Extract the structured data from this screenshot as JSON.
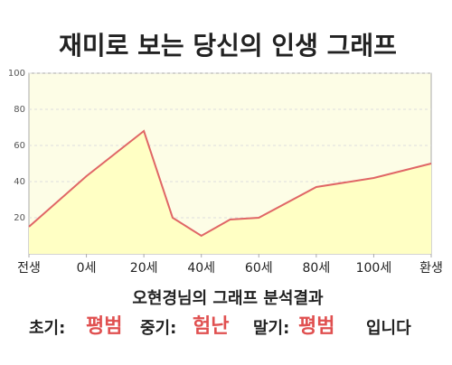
{
  "chart_data": {
    "type": "area",
    "title": "재미로 보는 당신의 인생 그래프",
    "x": [
      -20,
      0,
      20,
      30,
      40,
      50,
      60,
      80,
      100,
      120
    ],
    "values": [
      15,
      43,
      68,
      20,
      10,
      19,
      20,
      37,
      42,
      50
    ],
    "color": "#e06666",
    "fill": "#ffffc4",
    "xlim": [
      -20,
      120
    ],
    "xticks": [
      {
        "value": -20,
        "label": "전생"
      },
      {
        "value": 0,
        "label": "0세"
      },
      {
        "value": 20,
        "label": "20세"
      },
      {
        "value": 40,
        "label": "40세"
      },
      {
        "value": 60,
        "label": "60세"
      },
      {
        "value": 80,
        "label": "80세"
      },
      {
        "value": 100,
        "label": "100세"
      },
      {
        "value": 120,
        "label": "환생"
      }
    ],
    "ylim": [
      0,
      100
    ],
    "yticks": [
      20,
      40,
      60,
      80,
      100
    ],
    "grid": true
  },
  "summary": {
    "heading": "오현경님의 그래프 분석결과",
    "parts": [
      {
        "label": "초기:",
        "value": "평범"
      },
      {
        "label": "중기:",
        "value": "험난"
      },
      {
        "label": "말기:",
        "value": "평범"
      }
    ],
    "ending": "입니다"
  }
}
